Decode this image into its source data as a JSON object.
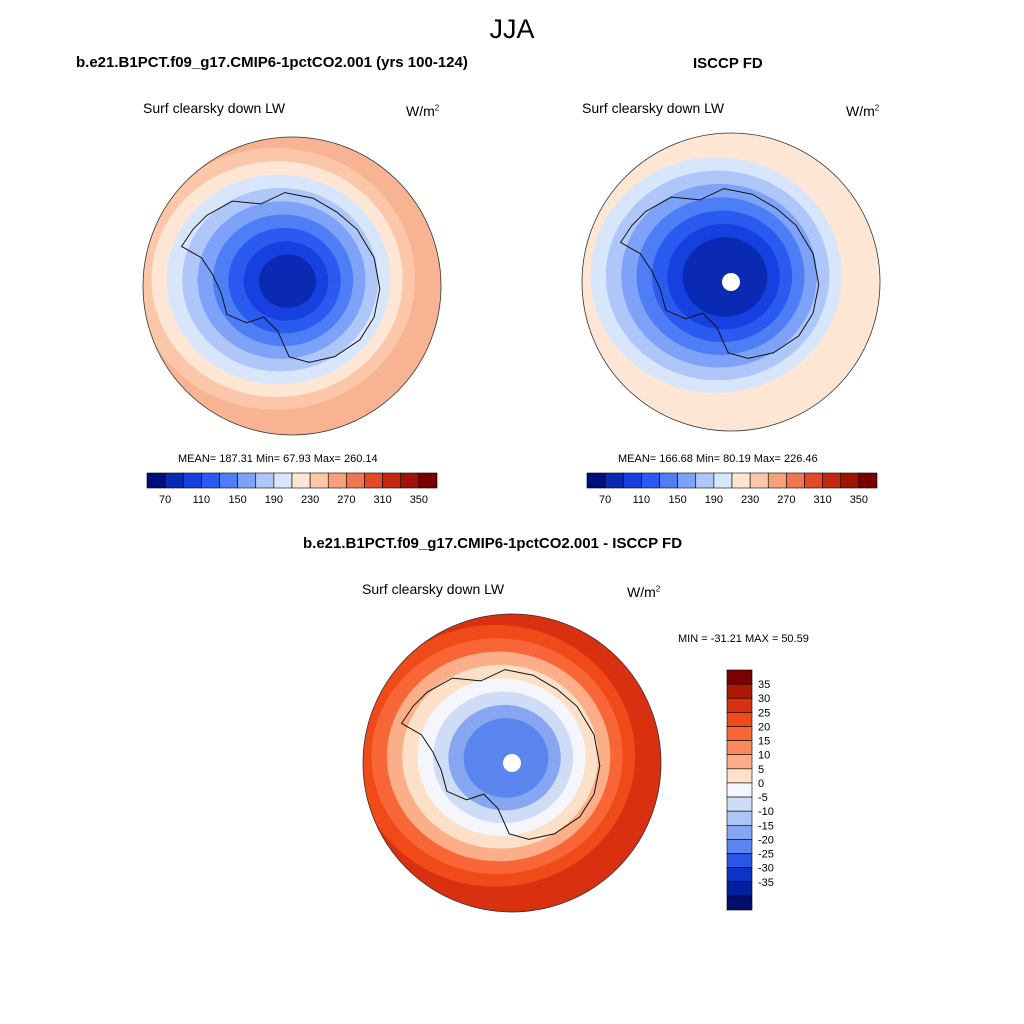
{
  "season": "JJA",
  "panels": [
    {
      "title": "b.e21.B1PCT.f09_g17.CMIP6-1pctCO2.001 (yrs 100-124)",
      "variable": "Surf clearsky down LW",
      "units": "W/m",
      "units_exp": "2",
      "stats": "MEAN= 187.31  Min=  67.93  Max= 260.14"
    },
    {
      "title": "ISCCP FD",
      "variable": "Surf clearsky down LW",
      "units": "W/m",
      "units_exp": "2",
      "stats": "MEAN= 166.68  Min=  80.19  Max= 226.46"
    },
    {
      "title": "b.e21.B1PCT.f09_g17.CMIP6-1pctCO2.001 - ISCCP FD",
      "variable": "Surf clearsky down LW",
      "units": "W/m",
      "units_exp": "2",
      "stats": "MIN = -31.21 MAX =  50.59"
    }
  ],
  "abs_colorbar": {
    "colors": [
      "#000e7a",
      "#0a2ab4",
      "#1640e0",
      "#2a5af0",
      "#4e7ef5",
      "#7ea2f7",
      "#aec6f8",
      "#d8e6fb",
      "#fde6d4",
      "#fcc6a8",
      "#f8a07c",
      "#f07650",
      "#e24a28",
      "#c42810",
      "#9e1404",
      "#7a0000"
    ],
    "labels": [
      "70",
      "110",
      "150",
      "190",
      "230",
      "270",
      "310",
      "350"
    ]
  },
  "diff_colorbar": {
    "colors": [
      "#7a0000",
      "#b01806",
      "#d83010",
      "#f04a18",
      "#f86638",
      "#fa8a5e",
      "#fcae88",
      "#fde0c8",
      "#f4f6fc",
      "#cfdcf6",
      "#aec6f6",
      "#86a6f2",
      "#5a84ee",
      "#2a56e8",
      "#0a34c8",
      "#0020a0",
      "#000e6e"
    ],
    "labels": [
      "35",
      "30",
      "25",
      "20",
      "15",
      "10",
      "5",
      "0",
      "-5",
      "-10",
      "-15",
      "-20",
      "-25",
      "-30",
      "-35"
    ]
  },
  "map_layers": {
    "model": [
      "#f8b492",
      "#fcc6a8",
      "#fde6d4",
      "#d8e6fb",
      "#aec6f8",
      "#7ea2f7",
      "#4e7ef5",
      "#2a5af0",
      "#1640e0",
      "#0a2ab4"
    ],
    "obs": [
      "#fde6d4",
      "#fde6d4",
      "#d8e6fb",
      "#aec6f8",
      "#7ea2f7",
      "#4e7ef5",
      "#2a5af0",
      "#1640e0",
      "#0a2ab4",
      "#0a2ab4"
    ],
    "diff": [
      "#d83010",
      "#f04a18",
      "#f86638",
      "#fcae88",
      "#fde0c8",
      "#f4f6fc",
      "#cfdcf6",
      "#86a6f2",
      "#5a84ee",
      "#5a84ee"
    ]
  }
}
